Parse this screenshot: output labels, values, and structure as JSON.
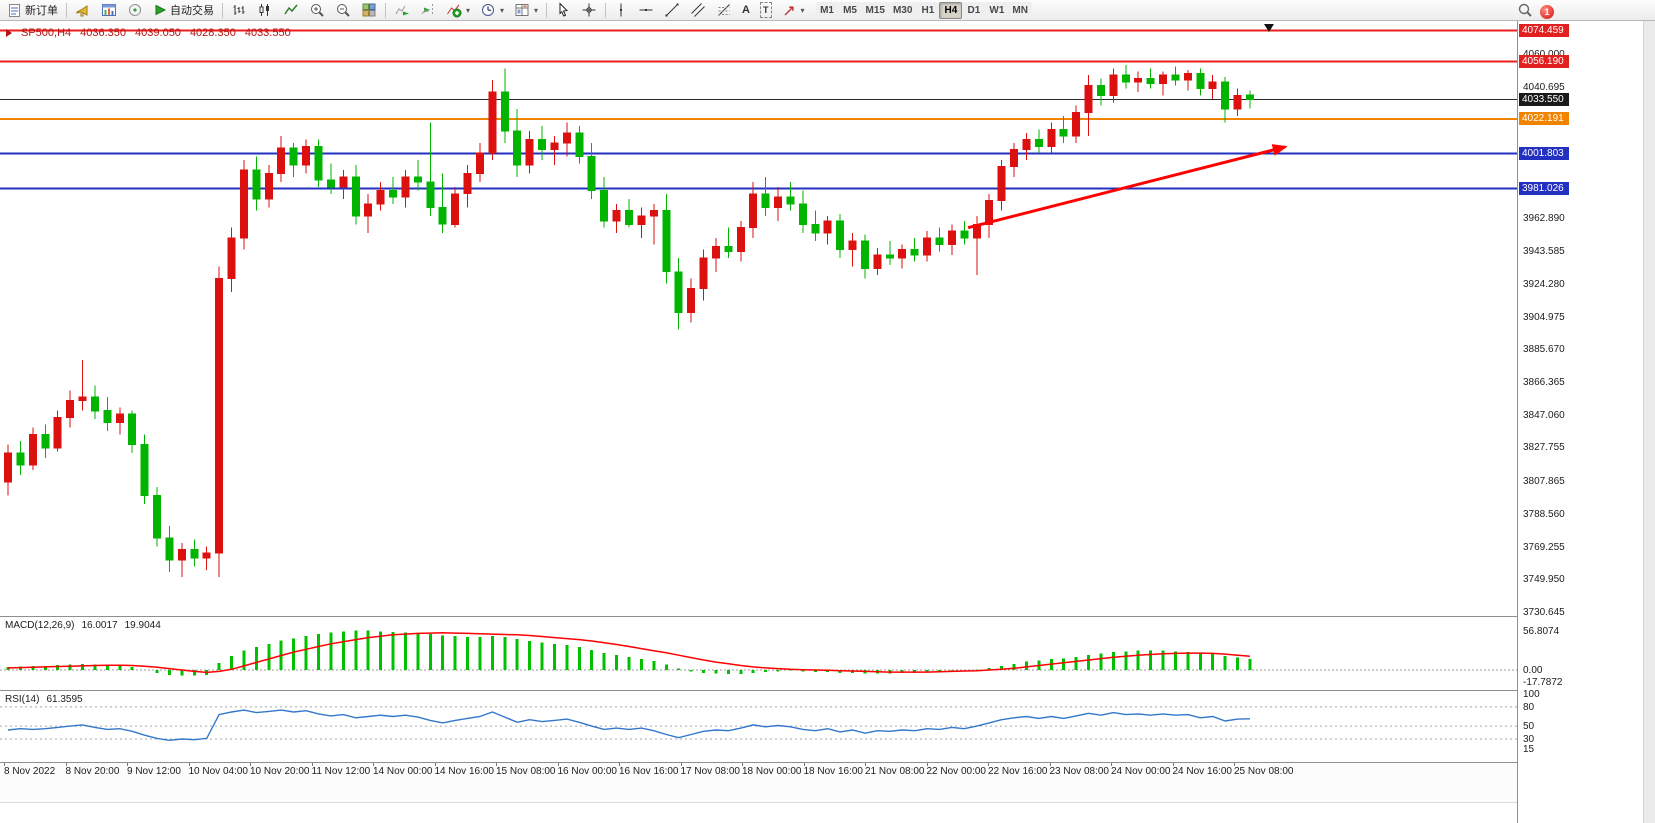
{
  "toolbar": {
    "new_order": "新订单",
    "autotrading": "自动交易",
    "timeframes": [
      "M1",
      "M5",
      "M15",
      "M30",
      "H1",
      "H4",
      "D1",
      "W1",
      "MN"
    ],
    "active_timeframe": "H4",
    "notification_count": "1",
    "text_tool_glyph": "A",
    "label_tool_glyph": "T",
    "icon_names": [
      "new-order-icon",
      "alerts-icon",
      "new-chart-icon",
      "market-watch-icon",
      "autotrading-icon",
      "bar-chart-icon",
      "candlestick-chart-icon",
      "line-chart-icon",
      "zoom-in-icon",
      "zoom-out-icon",
      "tile-windows-icon",
      "auto-scroll-icon",
      "chart-shift-icon",
      "indicators-add-icon",
      "periods-icon",
      "templates-icon",
      "cursor-icon",
      "crosshair-icon",
      "vertical-line-icon",
      "trendline-icon",
      "channel-icon",
      "fibonacci-icon",
      "text-icon",
      "label-icon",
      "arrows-icon",
      "search-icon",
      "notification-badge"
    ]
  },
  "chart_header": {
    "symbol": "SP500,H4",
    "open": "4036.350",
    "high": "4039.050",
    "low": "4028.350",
    "close": "4033.550"
  },
  "price_axis": {
    "gridline_labels": [
      "4060.000",
      "4040.695",
      "3962.890",
      "3943.585",
      "3924.280",
      "3904.975",
      "3885.670",
      "3866.365",
      "3847.060",
      "3827.755",
      "3807.865",
      "3788.560",
      "3769.255",
      "3749.950",
      "3730.645"
    ],
    "badges": [
      {
        "label": "4074.459",
        "bg": "#e22020"
      },
      {
        "label": "4056.190",
        "bg": "#e22020"
      },
      {
        "label": "4033.550",
        "bg": "#1a1a1a"
      },
      {
        "label": "4022.191",
        "bg": "#f08400"
      },
      {
        "label": "4001.803",
        "bg": "#2330c0"
      },
      {
        "label": "3981.026",
        "bg": "#2330c0"
      }
    ]
  },
  "indicator_panels": {
    "macd": {
      "title": "MACD(12,26,9)",
      "main_value": "16.0017",
      "signal_value": "19.9044",
      "axis_labels": [
        "56.8074",
        "0.00",
        "-17.7872"
      ]
    },
    "rsi": {
      "title": "RSI(14)",
      "value": "61.3595",
      "axis_labels": [
        "100",
        "80",
        "50",
        "30",
        "15"
      ]
    }
  },
  "time_axis": {
    "labels": [
      "8 Nov 2022",
      "8 Nov 20:00",
      "9 Nov 12:00",
      "10 Nov 04:00",
      "10 Nov 20:00",
      "11 Nov 12:00",
      "14 Nov 00:00",
      "14 Nov 16:00",
      "15 Nov 08:00",
      "16 Nov 00:00",
      "16 Nov 16:00",
      "17 Nov 08:00",
      "18 Nov 00:00",
      "18 Nov 16:00",
      "21 Nov 08:00",
      "22 Nov 00:00",
      "22 Nov 16:00",
      "23 Nov 08:00",
      "24 Nov 00:00",
      "24 Nov 16:00",
      "25 Nov 08:00"
    ]
  },
  "chart_data": {
    "type": "candlestick",
    "symbol": "SP500",
    "timeframe": "H4",
    "title": "SP500,H4 4036.350 4039.050 4028.350 4033.550",
    "price_range": [
      3728.9,
      4079.35
    ],
    "up_color": "#dd1010",
    "down_color": "#00b400",
    "candles": [
      [
        3808,
        3830,
        3800,
        3825
      ],
      [
        3825,
        3832,
        3812,
        3818
      ],
      [
        3818,
        3840,
        3815,
        3836
      ],
      [
        3836,
        3842,
        3822,
        3828
      ],
      [
        3828,
        3850,
        3826,
        3846
      ],
      [
        3846,
        3862,
        3840,
        3856
      ],
      [
        3856,
        3880,
        3850,
        3858
      ],
      [
        3858,
        3865,
        3845,
        3850
      ],
      [
        3850,
        3858,
        3838,
        3843
      ],
      [
        3843,
        3852,
        3836,
        3848
      ],
      [
        3848,
        3850,
        3825,
        3830
      ],
      [
        3830,
        3836,
        3795,
        3800
      ],
      [
        3800,
        3805,
        3770,
        3775
      ],
      [
        3775,
        3782,
        3755,
        3762
      ],
      [
        3762,
        3772,
        3752,
        3768
      ],
      [
        3768,
        3774,
        3758,
        3763
      ],
      [
        3763,
        3770,
        3756,
        3766
      ],
      [
        3766,
        3935,
        3752,
        3928
      ],
      [
        3928,
        3958,
        3920,
        3952
      ],
      [
        3952,
        3998,
        3945,
        3992
      ],
      [
        3992,
        4000,
        3968,
        3975
      ],
      [
        3975,
        3995,
        3970,
        3990
      ],
      [
        3990,
        4012,
        3985,
        4005
      ],
      [
        4005,
        4008,
        3988,
        3995
      ],
      [
        3995,
        4010,
        3990,
        4006
      ],
      [
        4006,
        4010,
        3982,
        3986
      ],
      [
        3986,
        3996,
        3978,
        3982
      ],
      [
        3982,
        3992,
        3975,
        3988
      ],
      [
        3988,
        3995,
        3960,
        3965
      ],
      [
        3965,
        3978,
        3955,
        3972
      ],
      [
        3972,
        3985,
        3968,
        3980
      ],
      [
        3980,
        3988,
        3972,
        3976
      ],
      [
        3976,
        3992,
        3970,
        3988
      ],
      [
        3988,
        3998,
        3980,
        3985
      ],
      [
        3985,
        4020,
        3965,
        3970
      ],
      [
        3970,
        3990,
        3955,
        3960
      ],
      [
        3960,
        3982,
        3958,
        3978
      ],
      [
        3978,
        3995,
        3970,
        3990
      ],
      [
        3990,
        4008,
        3985,
        4002
      ],
      [
        4002,
        4045,
        3998,
        4038
      ],
      [
        4038,
        4052,
        4008,
        4015
      ],
      [
        4015,
        4028,
        3988,
        3995
      ],
      [
        3995,
        4015,
        3990,
        4010
      ],
      [
        4010,
        4018,
        3998,
        4004
      ],
      [
        4004,
        4012,
        3995,
        4008
      ],
      [
        4008,
        4020,
        4000,
        4014
      ],
      [
        4014,
        4018,
        3996,
        4000
      ],
      [
        4000,
        4008,
        3975,
        3980
      ],
      [
        3980,
        3988,
        3958,
        3962
      ],
      [
        3962,
        3972,
        3955,
        3968
      ],
      [
        3968,
        3975,
        3958,
        3960
      ],
      [
        3960,
        3970,
        3952,
        3965
      ],
      [
        3965,
        3972,
        3948,
        3968
      ],
      [
        3968,
        3978,
        3925,
        3932
      ],
      [
        3932,
        3940,
        3898,
        3908
      ],
      [
        3908,
        3928,
        3902,
        3922
      ],
      [
        3922,
        3945,
        3915,
        3940
      ],
      [
        3940,
        3952,
        3932,
        3947
      ],
      [
        3947,
        3958,
        3940,
        3944
      ],
      [
        3944,
        3962,
        3938,
        3958
      ],
      [
        3958,
        3985,
        3952,
        3978
      ],
      [
        3978,
        3988,
        3965,
        3970
      ],
      [
        3970,
        3982,
        3962,
        3976
      ],
      [
        3976,
        3985,
        3968,
        3972
      ],
      [
        3972,
        3980,
        3955,
        3960
      ],
      [
        3960,
        3968,
        3950,
        3955
      ],
      [
        3955,
        3965,
        3948,
        3962
      ],
      [
        3962,
        3966,
        3940,
        3945
      ],
      [
        3945,
        3955,
        3935,
        3950
      ],
      [
        3950,
        3954,
        3928,
        3934
      ],
      [
        3934,
        3946,
        3930,
        3942
      ],
      [
        3942,
        3950,
        3936,
        3940
      ],
      [
        3940,
        3948,
        3934,
        3945
      ],
      [
        3945,
        3952,
        3938,
        3942
      ],
      [
        3942,
        3956,
        3938,
        3952
      ],
      [
        3952,
        3958,
        3944,
        3948
      ],
      [
        3948,
        3960,
        3942,
        3956
      ],
      [
        3956,
        3962,
        3948,
        3952
      ],
      [
        3952,
        3965,
        3930,
        3960
      ],
      [
        3960,
        3978,
        3952,
        3974
      ],
      [
        3974,
        3998,
        3968,
        3994
      ],
      [
        3994,
        4008,
        3988,
        4004
      ],
      [
        4004,
        4014,
        3998,
        4010
      ],
      [
        4010,
        4016,
        4002,
        4006
      ],
      [
        4006,
        4020,
        4002,
        4016
      ],
      [
        4016,
        4024,
        4008,
        4012
      ],
      [
        4012,
        4030,
        4008,
        4026
      ],
      [
        4026,
        4048,
        4012,
        4042
      ],
      [
        4042,
        4046,
        4030,
        4036
      ],
      [
        4036,
        4052,
        4032,
        4048
      ],
      [
        4048,
        4054,
        4040,
        4044
      ],
      [
        4044,
        4050,
        4038,
        4046
      ],
      [
        4046,
        4052,
        4040,
        4043
      ],
      [
        4043,
        4050,
        4036,
        4048
      ],
      [
        4048,
        4053,
        4042,
        4045
      ],
      [
        4045,
        4051,
        4039,
        4049
      ],
      [
        4049,
        4052,
        4036,
        4040
      ],
      [
        4040,
        4048,
        4034,
        4044
      ],
      [
        4044,
        4047,
        4020,
        4028
      ],
      [
        4028,
        4040,
        4024,
        4036
      ],
      [
        4036.35,
        4039.05,
        4028.35,
        4033.55
      ]
    ],
    "hlines": [
      {
        "price": 4074.459,
        "color": "#ee1c1c",
        "width": 2
      },
      {
        "price": 4056.19,
        "color": "#ee1c1c",
        "width": 2
      },
      {
        "price": 4033.55,
        "color": "#2b2b2b",
        "width": 1
      },
      {
        "price": 4022.191,
        "color": "#f08400",
        "width": 2
      },
      {
        "price": 4001.803,
        "color": "#2330c0",
        "width": 2
      },
      {
        "price": 3981.026,
        "color": "#2330c0",
        "width": 2
      }
    ],
    "arrow_annotation": {
      "from_bar": 77.3,
      "from_price": 3958,
      "to_bar": 102.8,
      "to_price": 4005.6,
      "color": "#ff0000",
      "width": 3
    },
    "macd": {
      "name": "MACD(12,26,9)",
      "hist_color": "#00c000",
      "signal_color": "#ff0000",
      "scale": [
        56.8074,
        0.0,
        -17.7872
      ],
      "histogram": [
        4,
        5,
        6,
        6,
        7,
        8,
        9,
        8,
        7,
        6,
        4,
        0,
        -4,
        -7,
        -8,
        -8,
        -7,
        10,
        20,
        28,
        33,
        38,
        43,
        46,
        49,
        52,
        54,
        56,
        57,
        57,
        56,
        55,
        54,
        53,
        52,
        50,
        49,
        48,
        48,
        49,
        48,
        45,
        42,
        40,
        38,
        36,
        33,
        29,
        25,
        22,
        19,
        16,
        13,
        8,
        2,
        -2,
        -4,
        -5,
        -6,
        -6,
        -4,
        -3,
        -2,
        -1,
        -2,
        -3,
        -3,
        -4,
        -4,
        -5,
        -5,
        -5,
        -4,
        -4,
        -3,
        -2,
        -1,
        0,
        1,
        3,
        6,
        9,
        12,
        14,
        16,
        17,
        19,
        22,
        24,
        26,
        27,
        28,
        28,
        28,
        27,
        26,
        25,
        23,
        20,
        18,
        16
      ],
      "signal": [
        3,
        3.5,
        4,
        4.5,
        5,
        5.5,
        6,
        6.5,
        7,
        7,
        6.5,
        5.5,
        4,
        2,
        0,
        -2,
        -3.5,
        -2,
        1,
        6,
        11,
        16,
        21,
        26,
        30,
        34,
        38,
        41,
        44,
        47,
        49,
        51,
        52,
        53,
        53.5,
        54,
        53.5,
        53,
        52.5,
        52,
        51.5,
        51,
        50,
        48.5,
        47,
        45.5,
        44,
        42,
        39.5,
        37,
        34,
        31,
        28,
        25,
        21.5,
        18,
        14.5,
        11.5,
        9,
        6.5,
        4.5,
        3,
        2,
        1,
        0.5,
        0,
        -0.5,
        -1,
        -1.5,
        -2,
        -2.5,
        -3,
        -3,
        -3,
        -3,
        -2.5,
        -2,
        -1.5,
        -1,
        0,
        1,
        2.5,
        4.5,
        6.5,
        8.5,
        10.5,
        12.5,
        14.5,
        16.5,
        18.5,
        20,
        21.5,
        22.5,
        23.5,
        24,
        24.5,
        24.5,
        24,
        23,
        21.5,
        20
      ]
    },
    "rsi": {
      "name": "RSI(14)",
      "line_color": "#3377cc",
      "levels": [
        80,
        50,
        30
      ],
      "values": [
        44,
        46,
        45,
        46,
        48,
        50,
        52,
        48,
        45,
        46,
        42,
        36,
        31,
        28,
        30,
        29,
        31,
        68,
        72,
        75,
        71,
        73,
        75,
        72,
        74,
        69,
        66,
        68,
        63,
        65,
        67,
        65,
        67,
        64,
        59,
        55,
        59,
        62,
        65,
        72,
        64,
        56,
        60,
        57,
        59,
        61,
        56,
        50,
        45,
        47,
        45,
        47,
        43,
        37,
        32,
        37,
        42,
        44,
        43,
        47,
        52,
        49,
        51,
        49,
        45,
        43,
        46,
        41,
        44,
        39,
        43,
        42,
        44,
        43,
        46,
        45,
        48,
        46,
        50,
        55,
        60,
        63,
        65,
        62,
        65,
        62,
        66,
        70,
        67,
        71,
        68,
        69,
        67,
        69,
        67,
        68,
        63,
        65,
        58,
        61,
        61.36
      ]
    }
  }
}
